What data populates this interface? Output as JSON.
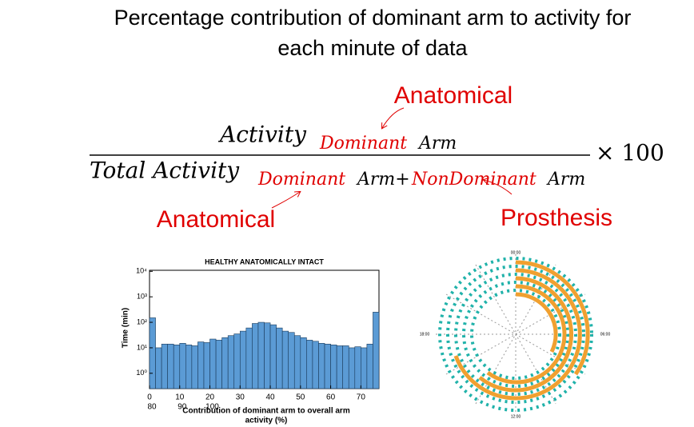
{
  "title": [
    "Percentage contribution of dominant arm to activity for",
    "each minute of data"
  ],
  "formula": {
    "numerator": [
      "Activity",
      "Dominant",
      "Arm"
    ],
    "denominator": [
      "Total Activity",
      "Dominant",
      "Arm+",
      "NonDominant",
      "Arm"
    ],
    "multiplier": "× 100"
  },
  "annotations": [
    "Anatomical",
    "Anatomical",
    "Prosthesis"
  ],
  "chart_data": {
    "type": "histogram",
    "title": "HEALTHY ANATOMICALLY INTACT",
    "x_label": "Contribution of dominant arm to overall arm",
    "x_label_2": "activity (%)",
    "y_label": "Time (min)",
    "log_y": true,
    "color": "#5b9bd5",
    "bins": [
      0,
      2,
      4,
      6,
      8,
      10,
      12,
      14,
      16,
      18,
      20,
      22,
      24,
      26,
      28,
      30,
      32,
      34,
      36,
      38,
      40,
      42,
      44,
      46,
      48,
      50,
      52,
      54,
      56,
      58,
      60,
      62,
      64,
      66,
      68,
      70,
      72,
      74,
      76
    ],
    "values": [
      150,
      10,
      14,
      14,
      13,
      15,
      13,
      12,
      17,
      16,
      22,
      20,
      25,
      30,
      35,
      45,
      60,
      90,
      100,
      95,
      80,
      60,
      45,
      40,
      30,
      25,
      20,
      18,
      15,
      14,
      13,
      12,
      12,
      10,
      11,
      10,
      14,
      250
    ],
    "xlim": [
      0,
      76
    ],
    "xticks": [
      0,
      10,
      20,
      30,
      40,
      50,
      60,
      70
    ],
    "xtick_overflow": [
      "80",
      "90",
      "100"
    ],
    "ylim": [
      0.25,
      11000
    ],
    "yticks": [
      {
        "value": 1,
        "label": "10⁰"
      },
      {
        "value": 10,
        "label": "10¹"
      },
      {
        "value": 100,
        "label": "10²"
      },
      {
        "value": 1000,
        "label": "10³"
      },
      {
        "value": 10000,
        "label": "10⁴"
      }
    ]
  },
  "polar": {
    "labels": [
      "00:00",
      "06:00",
      "12:00",
      "18:00"
    ]
  }
}
